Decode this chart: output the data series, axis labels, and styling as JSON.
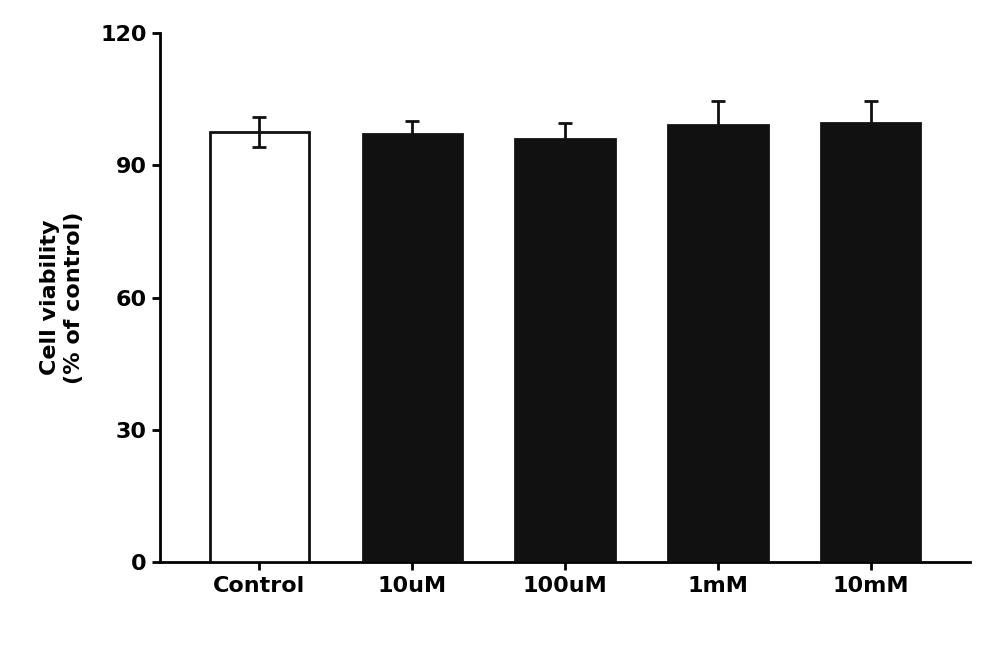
{
  "categories": [
    "Control",
    "10uM",
    "100uM",
    "1mM",
    "10mM"
  ],
  "values": [
    97.5,
    97.0,
    96.0,
    99.0,
    99.5
  ],
  "errors": [
    3.5,
    3.0,
    3.5,
    5.5,
    5.0
  ],
  "bar_colors": [
    "#ffffff",
    "#111111",
    "#111111",
    "#111111",
    "#111111"
  ],
  "bar_edgecolors": [
    "#111111",
    "#111111",
    "#111111",
    "#111111",
    "#111111"
  ],
  "ylabel_line1": "Cell viability",
  "ylabel_line2": "(% of control)",
  "ylim": [
    0,
    120
  ],
  "yticks": [
    0,
    30,
    60,
    90,
    120
  ],
  "background_color": "#ffffff",
  "bar_width": 0.65,
  "linewidth": 2.0,
  "capsize": 5,
  "error_color": "#111111",
  "axis_linewidth": 2.0,
  "tick_fontsize": 16,
  "ylabel_fontsize": 16
}
